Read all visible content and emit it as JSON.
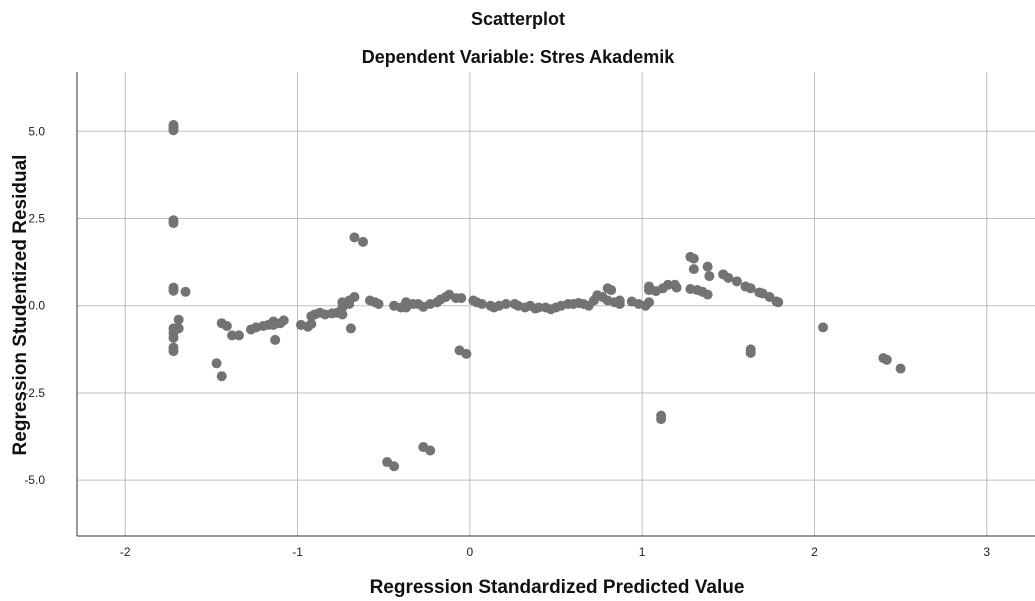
{
  "chart_data": {
    "type": "scatter",
    "title": "Scatterplot",
    "subtitle": "Dependent Variable: Stres Akademik",
    "xlabel": "Regression Standardized Predicted Value",
    "ylabel": "Regression Studentized Residual",
    "xlim": [
      -2.28,
      3.28
    ],
    "ylim": [
      -6.6,
      6.7
    ],
    "x_ticks": [
      {
        "value": -2,
        "label": "-2"
      },
      {
        "value": -1,
        "label": "-1"
      },
      {
        "value": 0,
        "label": "0"
      },
      {
        "value": 1,
        "label": "1"
      },
      {
        "value": 2,
        "label": "2"
      },
      {
        "value": 3,
        "label": "3"
      }
    ],
    "y_ticks": [
      {
        "value": 5,
        "label": "5.0"
      },
      {
        "value": 2.5,
        "label": "2.5"
      },
      {
        "value": 0,
        "label": "0.0"
      },
      {
        "value": -2.5,
        "label": "-2.5"
      },
      {
        "value": -5,
        "label": "-5.0"
      }
    ],
    "grid": true,
    "marker_color": "#737373",
    "series": [
      {
        "points": [
          [
            -1.72,
            5.18
          ],
          [
            -1.72,
            5.1
          ],
          [
            -1.72,
            5.03
          ],
          [
            -1.72,
            2.45
          ],
          [
            -1.72,
            2.37
          ],
          [
            -1.72,
            0.52
          ],
          [
            -1.72,
            0.43
          ],
          [
            -1.65,
            0.4
          ],
          [
            -1.72,
            -0.65
          ],
          [
            -1.72,
            -0.78
          ],
          [
            -1.72,
            -0.92
          ],
          [
            -1.72,
            -1.2
          ],
          [
            -1.72,
            -1.3
          ],
          [
            -1.69,
            -0.4
          ],
          [
            -1.69,
            -0.65
          ],
          [
            -1.47,
            -1.65
          ],
          [
            -1.44,
            -2.02
          ],
          [
            -1.44,
            -0.5
          ],
          [
            -1.41,
            -0.58
          ],
          [
            -1.38,
            -0.85
          ],
          [
            -1.34,
            -0.85
          ],
          [
            -1.27,
            -0.68
          ],
          [
            -1.24,
            -0.62
          ],
          [
            -1.2,
            -0.58
          ],
          [
            -1.17,
            -0.55
          ],
          [
            -1.14,
            -0.45
          ],
          [
            -1.14,
            -0.55
          ],
          [
            -1.13,
            -0.98
          ],
          [
            -1.1,
            -0.5
          ],
          [
            -1.08,
            -0.42
          ],
          [
            -0.98,
            -0.55
          ],
          [
            -0.94,
            -0.6
          ],
          [
            -0.92,
            -0.52
          ],
          [
            -0.92,
            -0.3
          ],
          [
            -0.9,
            -0.25
          ],
          [
            -0.87,
            -0.2
          ],
          [
            -0.84,
            -0.25
          ],
          [
            -0.8,
            -0.22
          ],
          [
            -0.77,
            -0.2
          ],
          [
            -0.74,
            0.1
          ],
          [
            -0.74,
            -0.05
          ],
          [
            -0.74,
            -0.25
          ],
          [
            -0.7,
            0.15
          ],
          [
            -0.7,
            0.05
          ],
          [
            -0.69,
            -0.65
          ],
          [
            -0.67,
            0.25
          ],
          [
            -0.67,
            1.96
          ],
          [
            -0.62,
            1.83
          ],
          [
            -0.58,
            0.15
          ],
          [
            -0.55,
            0.1
          ],
          [
            -0.53,
            0.05
          ],
          [
            -0.48,
            -4.48
          ],
          [
            -0.44,
            -4.6
          ],
          [
            -0.44,
            0.0
          ],
          [
            -0.4,
            -0.05
          ],
          [
            -0.37,
            0.1
          ],
          [
            -0.37,
            -0.05
          ],
          [
            -0.33,
            0.05
          ],
          [
            -0.3,
            0.05
          ],
          [
            -0.27,
            -0.03
          ],
          [
            -0.27,
            -4.05
          ],
          [
            -0.23,
            -4.15
          ],
          [
            -0.23,
            0.05
          ],
          [
            -0.19,
            0.1
          ],
          [
            -0.17,
            0.18
          ],
          [
            -0.14,
            0.25
          ],
          [
            -0.12,
            0.32
          ],
          [
            -0.08,
            0.22
          ],
          [
            -0.05,
            0.22
          ],
          [
            -0.06,
            -1.28
          ],
          [
            -0.02,
            -1.38
          ],
          [
            0.02,
            0.15
          ],
          [
            0.04,
            0.1
          ],
          [
            0.07,
            0.05
          ],
          [
            0.12,
            0.0
          ],
          [
            0.14,
            -0.05
          ],
          [
            0.17,
            0.0
          ],
          [
            0.21,
            0.05
          ],
          [
            0.26,
            0.05
          ],
          [
            0.28,
            0.0
          ],
          [
            0.32,
            -0.05
          ],
          [
            0.35,
            0.0
          ],
          [
            0.38,
            -0.08
          ],
          [
            0.4,
            -0.05
          ],
          [
            0.44,
            -0.05
          ],
          [
            0.47,
            -0.1
          ],
          [
            0.5,
            -0.05
          ],
          [
            0.53,
            0.0
          ],
          [
            0.57,
            0.05
          ],
          [
            0.6,
            0.05
          ],
          [
            0.63,
            0.08
          ],
          [
            0.66,
            0.05
          ],
          [
            0.69,
            0.0
          ],
          [
            0.72,
            0.15
          ],
          [
            0.74,
            0.3
          ],
          [
            0.77,
            0.25
          ],
          [
            0.8,
            0.5
          ],
          [
            0.82,
            0.45
          ],
          [
            0.8,
            0.15
          ],
          [
            0.84,
            0.1
          ],
          [
            0.87,
            0.15
          ],
          [
            0.87,
            0.05
          ],
          [
            0.94,
            0.12
          ],
          [
            0.98,
            0.05
          ],
          [
            1.02,
            0.0
          ],
          [
            1.04,
            0.55
          ],
          [
            1.04,
            0.45
          ],
          [
            1.04,
            0.1
          ],
          [
            1.08,
            0.42
          ],
          [
            1.12,
            0.5
          ],
          [
            1.15,
            0.6
          ],
          [
            1.19,
            0.6
          ],
          [
            1.2,
            0.52
          ],
          [
            1.11,
            -3.15
          ],
          [
            1.11,
            -3.25
          ],
          [
            1.28,
            1.4
          ],
          [
            1.3,
            1.35
          ],
          [
            1.3,
            1.05
          ],
          [
            1.28,
            0.48
          ],
          [
            1.32,
            0.45
          ],
          [
            1.35,
            0.4
          ],
          [
            1.38,
            0.32
          ],
          [
            1.38,
            1.12
          ],
          [
            1.39,
            0.85
          ],
          [
            1.47,
            0.9
          ],
          [
            1.5,
            0.8
          ],
          [
            1.55,
            0.7
          ],
          [
            1.6,
            0.55
          ],
          [
            1.63,
            0.5
          ],
          [
            1.68,
            0.38
          ],
          [
            1.7,
            0.35
          ],
          [
            1.74,
            0.25
          ],
          [
            1.78,
            0.12
          ],
          [
            1.79,
            0.1
          ],
          [
            1.63,
            -1.25
          ],
          [
            1.63,
            -1.35
          ],
          [
            2.05,
            -0.62
          ],
          [
            2.4,
            -1.5
          ],
          [
            2.42,
            -1.55
          ],
          [
            2.5,
            -1.8
          ]
        ]
      }
    ]
  }
}
